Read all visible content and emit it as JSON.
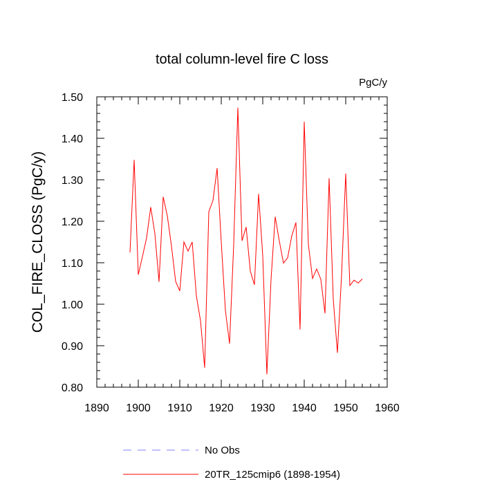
{
  "chart_data": {
    "type": "line",
    "title": "total column-level fire C loss",
    "units": "PgC/y",
    "xlabel": "",
    "ylabel": "COL_FIRE_CLOSS  (PgC/y)",
    "xlim": [
      1890,
      1960
    ],
    "ylim": [
      0.8,
      1.5
    ],
    "x_ticks": [
      1890,
      1900,
      1910,
      1920,
      1930,
      1940,
      1950,
      1960
    ],
    "x_tick_labels": [
      "1890",
      "1900",
      "1910",
      "1920",
      "1930",
      "1940",
      "1950",
      "1960"
    ],
    "y_ticks": [
      0.8,
      0.9,
      1.0,
      1.1,
      1.2,
      1.3,
      1.4,
      1.5
    ],
    "y_tick_labels": [
      "0.80",
      "0.90",
      "1.00",
      "1.10",
      "1.20",
      "1.30",
      "1.40",
      "1.50"
    ],
    "grid": false,
    "legend_position": "bottom",
    "series": [
      {
        "name": "No Obs",
        "color": "#8080ff",
        "dash": "dashed",
        "x": [],
        "values": []
      },
      {
        "name": "20TR_125cmip6 (1898-1954)",
        "color": "#ff0000",
        "dash": "solid",
        "x": [
          1898,
          1899,
          1900,
          1901,
          1902,
          1903,
          1904,
          1905,
          1906,
          1907,
          1908,
          1909,
          1910,
          1911,
          1912,
          1913,
          1914,
          1915,
          1916,
          1917,
          1918,
          1919,
          1920,
          1921,
          1922,
          1923,
          1924,
          1925,
          1926,
          1927,
          1928,
          1929,
          1930,
          1931,
          1932,
          1933,
          1934,
          1935,
          1936,
          1937,
          1938,
          1939,
          1940,
          1941,
          1942,
          1943,
          1944,
          1945,
          1946,
          1947,
          1948,
          1949,
          1950,
          1951,
          1952,
          1953,
          1954
        ],
        "values": [
          1.125,
          1.348,
          1.071,
          1.115,
          1.16,
          1.234,
          1.17,
          1.054,
          1.259,
          1.213,
          1.14,
          1.055,
          1.032,
          1.15,
          1.128,
          1.15,
          1.02,
          0.96,
          0.847,
          1.223,
          1.25,
          1.328,
          1.15,
          0.985,
          0.905,
          1.145,
          1.474,
          1.153,
          1.186,
          1.08,
          1.047,
          1.266,
          1.117,
          0.831,
          1.06,
          1.211,
          1.152,
          1.099,
          1.112,
          1.165,
          1.197,
          0.939,
          1.44,
          1.144,
          1.062,
          1.085,
          1.06,
          0.978,
          1.304,
          1.012,
          0.883,
          1.07,
          1.315,
          1.045,
          1.058,
          1.051,
          1.061
        ]
      }
    ]
  }
}
